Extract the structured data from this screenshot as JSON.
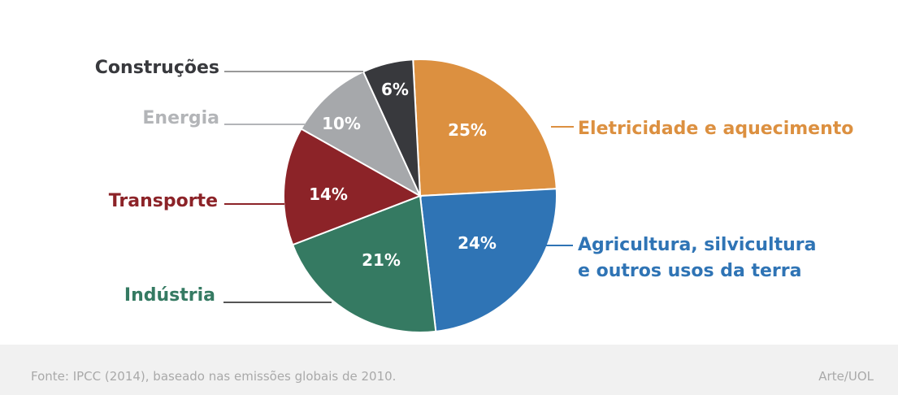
{
  "chart_data": {
    "type": "pie",
    "slices": [
      {
        "label": "Eletricidade e aquecimento",
        "value": 25,
        "display": "25%",
        "color": "#dc9040"
      },
      {
        "label": "Agricultura, silvicultura e outros usos da terra",
        "label_lines": [
          "Agricultura, silvicultura",
          "e outros usos da terra"
        ],
        "value": 24,
        "display": "24%",
        "color": "#2f74b5"
      },
      {
        "label": "Indústria",
        "value": 21,
        "display": "21%",
        "color": "#357a62"
      },
      {
        "label": "Transporte",
        "value": 14,
        "display": "14%",
        "color": "#8c2328"
      },
      {
        "label": "Energia",
        "value": 10,
        "display": "10%",
        "color": "#a6a8ab"
      },
      {
        "label": "Construções",
        "value": 6,
        "display": "6%",
        "color": "#38393d"
      }
    ],
    "label_colors": {
      "Eletricidade e aquecimento": "#dc9040",
      "Agricultura, silvicultura e outros usos da terra": "#2f74b5",
      "Indústria": "#357a62",
      "Transporte": "#8c2328",
      "Energia": "#b3b5b8",
      "Construções": "#38393d"
    }
  },
  "footer": {
    "source": "Fonte: IPCC (2014), baseado nas emissões globais de 2010.",
    "credit": "Arte/UOL"
  },
  "colors": {
    "rule": "#2e6f9e",
    "footer_bg": "#f1f1f1",
    "footer_text": "#a9a9a9"
  }
}
